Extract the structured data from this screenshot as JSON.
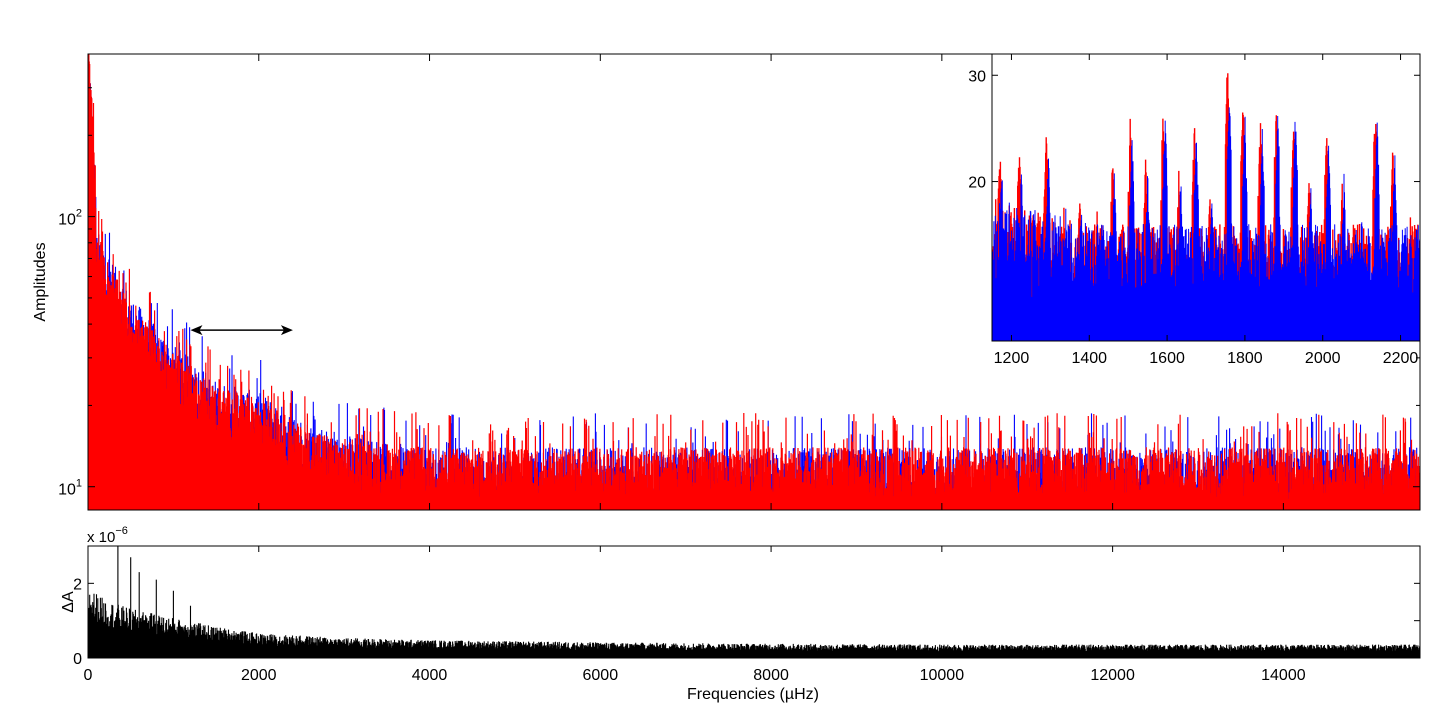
{
  "chart_data": [
    {
      "type": "line",
      "panel": "main",
      "ylabel": "Amplitudes",
      "yscale": "log",
      "xlim": [
        0,
        15600
      ],
      "ylim": [
        8.2,
        400
      ],
      "ytick_labels": [
        {
          "value": 10,
          "base": "10",
          "exp": "1"
        },
        {
          "value": 100,
          "base": "10",
          "exp": "2"
        }
      ],
      "annotation": {
        "type": "double-arrow",
        "x_from": 1200,
        "x_to": 2400,
        "y": 38
      },
      "colors": {
        "series_a": "#0000ff",
        "series_b": "#ff0000"
      },
      "series": [
        {
          "color": "#0000ff",
          "x": [
            0,
            100,
            300,
            500,
            800,
            1000,
            1500,
            2000,
            2500,
            3000,
            4000,
            6000,
            8000,
            10000,
            12000,
            14000,
            15600
          ],
          "y_envelope": [
            400,
            80,
            60,
            45,
            35,
            30,
            22,
            20,
            16,
            14,
            12.5,
            12.5,
            12.5,
            12.5,
            12.5,
            12.5,
            12.5
          ]
        },
        {
          "color": "#ff0000",
          "x": [
            0,
            100,
            300,
            500,
            800,
            1000,
            1500,
            2000,
            2500,
            3000,
            4000,
            6000,
            8000,
            10000,
            12000,
            14000,
            15600
          ],
          "y_envelope": [
            400,
            75,
            55,
            42,
            33,
            28,
            21,
            19,
            15,
            13.5,
            12.5,
            12.5,
            12.5,
            12.5,
            12.5,
            12.5,
            12.5
          ]
        }
      ]
    },
    {
      "type": "line",
      "panel": "inset",
      "xlim": [
        1150,
        2250
      ],
      "ylim": [
        5,
        32
      ],
      "xticks": [
        1200,
        1400,
        1600,
        1800,
        2000,
        2200
      ],
      "yticks": [
        20,
        30
      ],
      "series": [
        {
          "color": "#ff0000",
          "peaks_x": [
            1170,
            1220,
            1255,
            1290,
            1335,
            1375,
            1420,
            1460,
            1505,
            1545,
            1590,
            1630,
            1670,
            1710,
            1755,
            1795,
            1840,
            1880,
            1925,
            1965,
            2010,
            2050,
            2095,
            2135,
            2180,
            2225
          ],
          "peaks_y": [
            24,
            24.5,
            18.5,
            25.5,
            18.5,
            20,
            17.5,
            23,
            26.5,
            22.5,
            28.5,
            22,
            26,
            20.5,
            31.5,
            28.5,
            26.5,
            28,
            26.5,
            22,
            26,
            20.5,
            18,
            28,
            24.5,
            18.5
          ]
        },
        {
          "color": "#0000ff",
          "peaks_x": [
            1175,
            1225,
            1260,
            1295,
            1340,
            1380,
            1425,
            1465,
            1510,
            1550,
            1595,
            1635,
            1675,
            1715,
            1760,
            1800,
            1845,
            1885,
            1930,
            1970,
            2015,
            2055,
            2100,
            2140,
            2185
          ],
          "peaks_y": [
            22,
            22,
            17.5,
            23,
            18,
            19,
            16.5,
            21.5,
            25,
            21.5,
            27,
            21,
            25.5,
            19.5,
            29,
            27,
            25.5,
            27,
            27.5,
            21,
            24.5,
            21,
            17.5,
            26.5,
            23.5
          ]
        }
      ]
    },
    {
      "type": "line",
      "panel": "residual",
      "xlabel": "Frequencies (µHz)",
      "ylabel": "ΔA",
      "scale_note": "x 10",
      "scale_exp": "−6",
      "xlim": [
        0,
        15600
      ],
      "ylim": [
        0,
        3
      ],
      "xticks": [
        0,
        2000,
        4000,
        6000,
        8000,
        10000,
        12000,
        14000
      ],
      "yticks": [
        0,
        1,
        2
      ],
      "series": [
        {
          "color": "#000000",
          "x": [
            0,
            200,
            500,
            1000,
            1500,
            2000,
            3000,
            4000,
            6000,
            8000,
            10000,
            12000,
            14000,
            15600
          ],
          "y_envelope": [
            1.6,
            1.3,
            1.1,
            0.9,
            0.7,
            0.55,
            0.45,
            0.4,
            0.35,
            0.32,
            0.3,
            0.3,
            0.3,
            0.3
          ],
          "spikes": [
            [
              350,
              3.0
            ],
            [
              500,
              2.7
            ],
            [
              600,
              2.3
            ],
            [
              800,
              2.1
            ],
            [
              1000,
              1.8
            ],
            [
              1200,
              1.4
            ]
          ]
        }
      ]
    }
  ]
}
